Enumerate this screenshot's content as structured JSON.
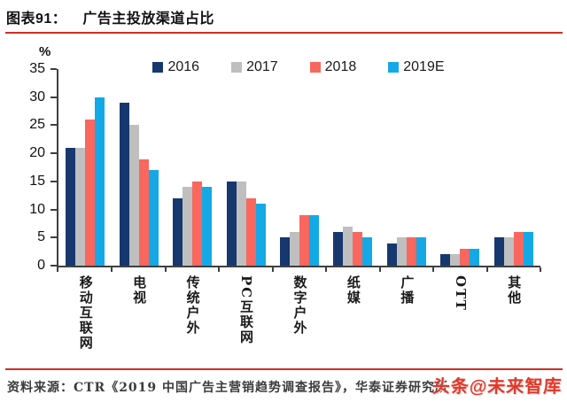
{
  "header": {
    "label": "图表91：",
    "title": "广告主投放渠道占比"
  },
  "chart_data": {
    "type": "bar",
    "title": "广告主投放渠道占比",
    "unit_label": "%",
    "categories": [
      "移动互联网",
      "电视",
      "传统户外",
      "PC互联网",
      "数字户外",
      "纸媒",
      "广播",
      "OTT",
      "其他"
    ],
    "series": [
      {
        "name": "2016",
        "color": "#17386e",
        "values": [
          21,
          29,
          12,
          15,
          5,
          6,
          4,
          2,
          5
        ]
      },
      {
        "name": "2017",
        "color": "#bfbfbf",
        "values": [
          21,
          25,
          14,
          15,
          6,
          7,
          5,
          2,
          5
        ]
      },
      {
        "name": "2018",
        "color": "#f9675f",
        "values": [
          26,
          19,
          15,
          12,
          9,
          6,
          5,
          3,
          6
        ]
      },
      {
        "name": "2019E",
        "color": "#14a9e6",
        "values": [
          30,
          17,
          14,
          11,
          9,
          5,
          5,
          3,
          6
        ]
      }
    ],
    "ylim": [
      0,
      35
    ],
    "yticks": [
      0,
      5,
      10,
      15,
      20,
      25,
      30,
      35
    ],
    "legend_position": "top-center",
    "grid": false
  },
  "footer": {
    "source": "资料来源：CTR《2019 中国广告主营销趋势调查报告》，华泰证券研究所"
  },
  "watermark": {
    "text": "头条@未来智库"
  },
  "colors": {
    "rule": "#cf2f23",
    "axis": "#3f3f3f",
    "watermark": "#e0392b"
  }
}
